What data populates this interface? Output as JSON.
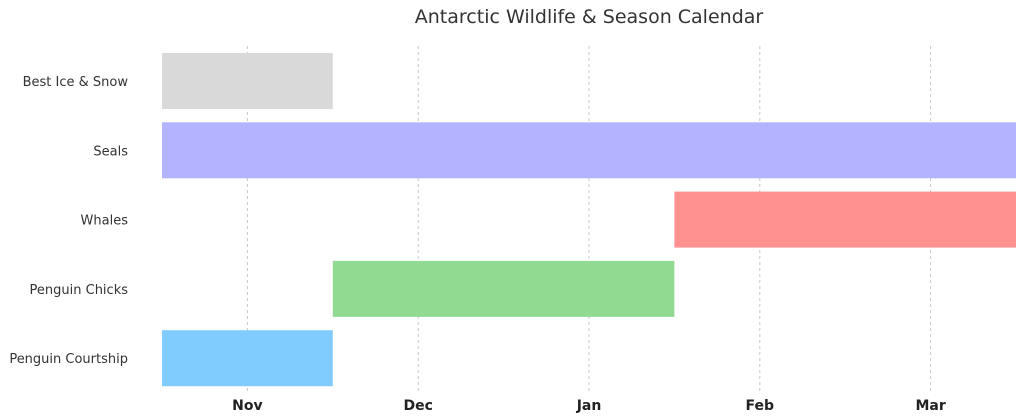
{
  "chart_data": {
    "type": "bar",
    "orientation": "horizontal",
    "title": "Antarctic Wildlife & Season Calendar",
    "xlabel": "",
    "ylabel": "",
    "x_ticks": [
      {
        "label": "Nov",
        "value": 0.5
      },
      {
        "label": "Dec",
        "value": 1.5
      },
      {
        "label": "Jan",
        "value": 2.5
      },
      {
        "label": "Feb",
        "value": 3.5
      },
      {
        "label": "Mar",
        "value": 4.5
      }
    ],
    "xlim": [
      0,
      5
    ],
    "grid": "vertical dashed",
    "legend": "none",
    "categories": [
      "Best Ice & Snow",
      "Seals",
      "Whales",
      "Penguin Chicks",
      "Penguin Courtship"
    ],
    "series": [
      {
        "category": "Best Ice & Snow",
        "start": 0,
        "end": 1,
        "color": "#d9d9d9"
      },
      {
        "category": "Seals",
        "start": 0,
        "end": 5,
        "color": "#b3b3ff"
      },
      {
        "category": "Whales",
        "start": 3,
        "end": 5,
        "color": "#ff9191"
      },
      {
        "category": "Penguin Chicks",
        "start": 1,
        "end": 3,
        "color": "#91da91"
      },
      {
        "category": "Penguin Courtship",
        "start": 0,
        "end": 1,
        "color": "#80cbff"
      }
    ]
  }
}
